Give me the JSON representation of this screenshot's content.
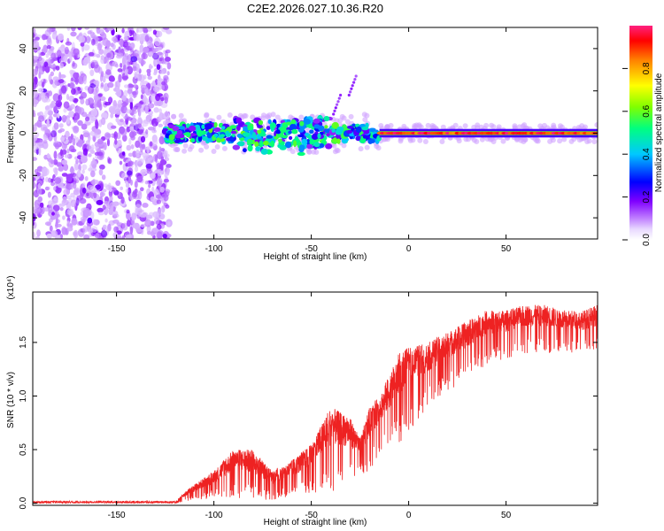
{
  "figure_title": "C2E2.2026.027.10.36.R20",
  "chart_data": [
    {
      "type": "heatmap",
      "title": "",
      "xlabel": "Height of straight line (km)",
      "ylabel": "Frequency (Hz)",
      "xlim": [
        -193,
        97
      ],
      "ylim": [
        -50,
        50
      ],
      "x_ticks": [
        -150,
        -100,
        -50,
        0,
        50
      ],
      "y_ticks": [
        -40,
        -20,
        0,
        20,
        40
      ],
      "colorbar": {
        "label": "Normalized spectral amplitude",
        "range": [
          0.0,
          1.0
        ],
        "ticks": [
          0.0,
          0.2,
          0.4,
          0.6,
          0.8
        ],
        "tick_labels": [
          "0.0",
          "0.2",
          "0.4",
          "0.6",
          "0.8"
        ],
        "colors": [
          "#ffffff",
          "#c080ff",
          "#8000ff",
          "#0000ff",
          "#00c0ff",
          "#00ff80",
          "#80ff00",
          "#ffff00",
          "#ff8000",
          "#ff0000",
          "#ff2080"
        ]
      },
      "regions": [
        {
          "name": "noise",
          "x_range": [
            -193,
            -125
          ],
          "freq_range": [
            -50,
            50
          ],
          "amplitude": [
            0.05,
            0.2
          ]
        },
        {
          "name": "transition",
          "x_range": [
            -125,
            -15
          ],
          "freq_center": 0,
          "freq_halfwidth": 6,
          "amplitude": [
            0.2,
            0.6
          ]
        },
        {
          "name": "clean-signal",
          "x_range": [
            -15,
            97
          ],
          "freq_center": 0,
          "freq_halfwidth": 2,
          "amplitude": [
            0.9,
            1.0
          ]
        }
      ],
      "spurs": [
        {
          "x": -35,
          "freq": 18
        },
        {
          "x": -27,
          "freq": 27
        }
      ]
    },
    {
      "type": "line",
      "title": "",
      "xlabel": "Height of straight line (km)",
      "ylabel": "SNR (10 * v/v)",
      "y_scale_label": "(x10⁴)",
      "xlim": [
        -193,
        97
      ],
      "ylim": [
        -0.02,
        1.97
      ],
      "x_ticks": [
        -150,
        -100,
        -50,
        0,
        50
      ],
      "x_tick_labels": [
        "-150",
        "-100",
        "-50",
        "0",
        "50"
      ],
      "y_ticks": [
        0.0,
        0.5,
        1.0,
        1.5
      ],
      "y_tick_labels": [
        "0.0",
        "0.5",
        "1.0",
        "1.5"
      ],
      "series": [
        {
          "name": "SNR",
          "color": "#ee2222",
          "trend": {
            "x": [
              -193,
              -150,
              -120,
              -112,
              -100,
              -90,
              -80,
              -70,
              -60,
              -50,
              -40,
              -30,
              -25,
              -20,
              -15,
              -10,
              -5,
              0,
              10,
              20,
              30,
              40,
              50,
              60,
              70,
              80,
              90,
              97
            ],
            "low": [
              0.0,
              0.0,
              0.0,
              0.02,
              0.05,
              0.05,
              0.03,
              0.03,
              0.05,
              0.1,
              0.1,
              0.2,
              0.25,
              0.3,
              0.45,
              0.5,
              0.55,
              0.65,
              0.9,
              1.05,
              1.15,
              1.3,
              1.35,
              1.4,
              1.4,
              1.4,
              1.4,
              1.4
            ],
            "high": [
              0.02,
              0.02,
              0.02,
              0.15,
              0.3,
              0.5,
              0.5,
              0.3,
              0.4,
              0.55,
              0.9,
              0.8,
              0.6,
              0.9,
              1.0,
              1.2,
              1.4,
              1.45,
              1.5,
              1.6,
              1.7,
              1.8,
              1.8,
              1.85,
              1.85,
              1.8,
              1.8,
              1.85
            ]
          }
        }
      ]
    }
  ]
}
